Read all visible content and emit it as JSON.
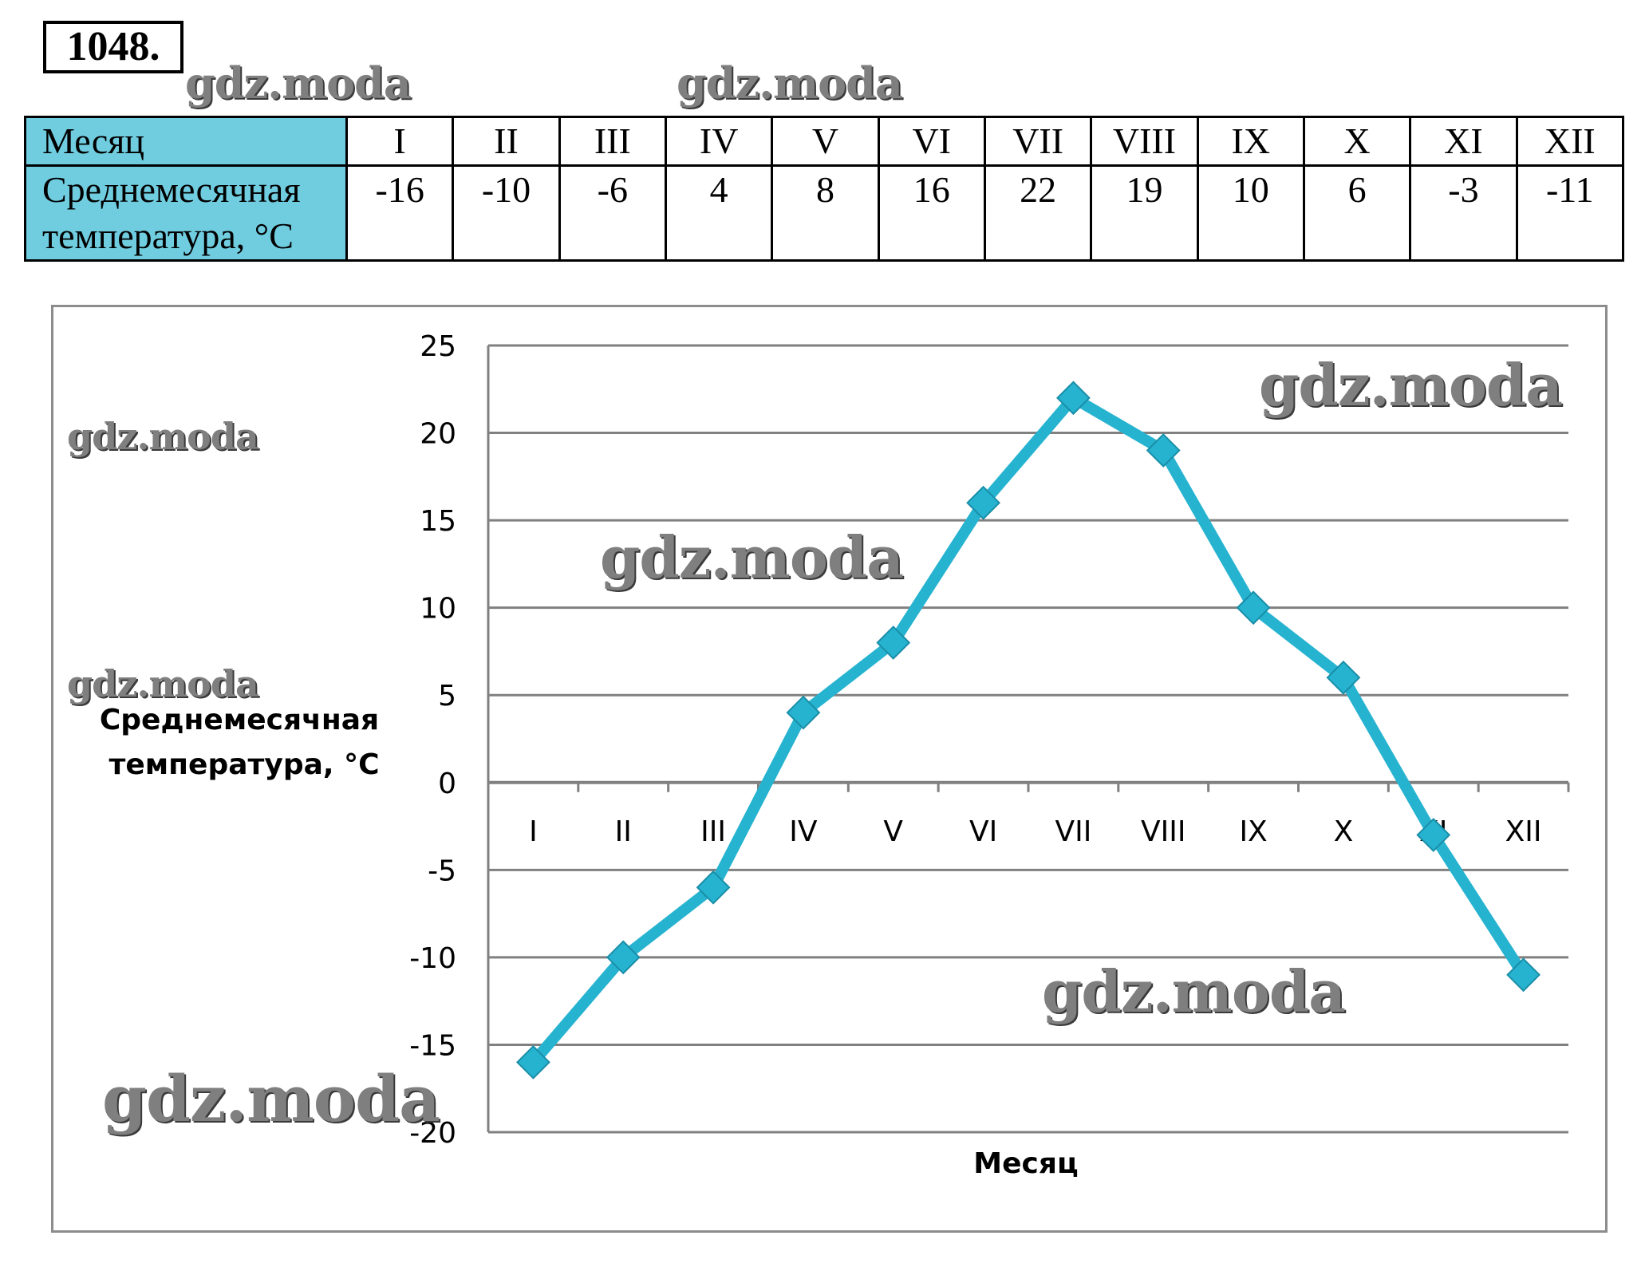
{
  "problem_number": "1048.",
  "watermark_text": "gdz.moda",
  "table": {
    "row1_label": "Месяц",
    "row2_label_line1": "Среднемесячная",
    "row2_label_line2": "температура, °C",
    "months": [
      "I",
      "II",
      "III",
      "IV",
      "V",
      "VI",
      "VII",
      "VIII",
      "IX",
      "X",
      "XI",
      "XII"
    ],
    "temperatures": [
      "-16",
      "-10",
      "-6",
      "4",
      "8",
      "16",
      "22",
      "19",
      "10",
      "6",
      "-3",
      "-11"
    ]
  },
  "colors": {
    "line": "#26b3d0",
    "header_fill": "#70cde0",
    "grid": "#808080"
  },
  "chart_data": {
    "type": "line",
    "categories": [
      "I",
      "II",
      "III",
      "IV",
      "V",
      "VI",
      "VII",
      "VIII",
      "IX",
      "X",
      "XI",
      "XII"
    ],
    "series": [
      {
        "values": [
          -16,
          -10,
          -6,
          4,
          8,
          16,
          22,
          19,
          10,
          6,
          -3,
          -11
        ]
      }
    ],
    "xlabel": "Месяц",
    "ylabel_line1": "Среднемесячная",
    "ylabel_line2": "температура, °C",
    "ylim": [
      -20,
      25
    ],
    "yticks": [
      25,
      20,
      15,
      10,
      5,
      0,
      -5,
      -10,
      -15,
      -20
    ],
    "grid": true,
    "legend": "none"
  }
}
